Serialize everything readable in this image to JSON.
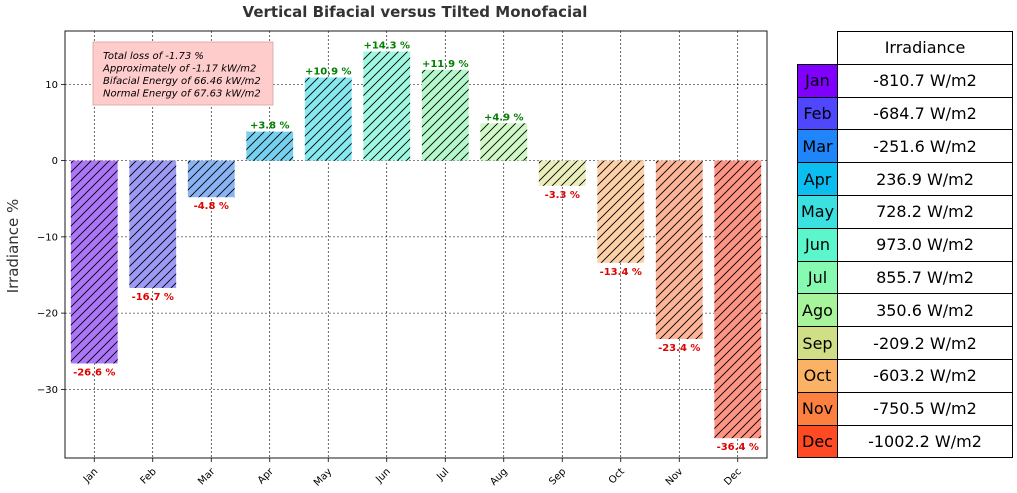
{
  "chart_data": {
    "type": "bar",
    "title": "Vertical Bifacial versus Tilted Monofacial",
    "ylabel": "Irradiance %",
    "xlabel": "",
    "categories": [
      "Jan",
      "Feb",
      "Mar",
      "Apr",
      "May",
      "Jun",
      "Jul",
      "Aug",
      "Sep",
      "Oct",
      "Nov",
      "Dec"
    ],
    "values": [
      -26.6,
      -16.7,
      -4.8,
      3.8,
      10.9,
      14.3,
      11.9,
      4.9,
      -3.3,
      -13.4,
      -23.4,
      -36.4
    ],
    "value_labels": [
      "-26.6 %",
      "-16.7 %",
      "-4.8 %",
      "+3.8 %",
      "+10.9 %",
      "+14.3 %",
      "+11.9 %",
      "+4.9 %",
      "-3.3 %",
      "-13.4 %",
      "-23.4 %",
      "-36.4 %"
    ],
    "ylim": [
      -39,
      17
    ],
    "yticks": [
      -30,
      -20,
      -10,
      0,
      10
    ],
    "ytick_labels": [
      "−30",
      "−20",
      "−10",
      "0",
      "10"
    ],
    "grid": true,
    "hatch": "diagonal",
    "colors": [
      "#ab77f8",
      "#9c9af5",
      "#8ab3f3",
      "#75d1ef",
      "#86e9ef",
      "#9ff9e2",
      "#b5f8cc",
      "#d1f8c7",
      "#ebeebc",
      "#fdd0a8",
      "#fdb498",
      "#fd9484"
    ],
    "positive_label_color": "#008000",
    "negative_label_color": "#e00000",
    "info_box": {
      "lines": [
        "Total loss of -1.73 %",
        "Approximately of -1.17 kW/m2",
        "Bifacial Energy of 66.46 kW/m2",
        "Normal Energy of 67.63 kW/m2"
      ],
      "background": "#ffcccc"
    }
  },
  "table": {
    "header": "Irradiance",
    "rows": [
      {
        "month": "Jan",
        "value": "-810.7 W/m2",
        "color": "#7f00ff"
      },
      {
        "month": "Feb",
        "value": "-684.7 W/m2",
        "color": "#4f47fe"
      },
      {
        "month": "Mar",
        "value": "-251.6 W/m2",
        "color": "#1f85f8"
      },
      {
        "month": "Apr",
        "value": "236.9 W/m2",
        "color": "#0cbdf0"
      },
      {
        "month": "May",
        "value": "728.2 W/m2",
        "color": "#3ce0e0"
      },
      {
        "month": "Jun",
        "value": "973.0 W/m2",
        "color": "#5cf6cc"
      },
      {
        "month": "Jul",
        "value": "855.7 W/m2",
        "color": "#86fab0"
      },
      {
        "month": "Ago",
        "value": "350.6 W/m2",
        "color": "#a8f49a"
      },
      {
        "month": "Sep",
        "value": "-209.2 W/m2",
        "color": "#d0df86"
      },
      {
        "month": "Oct",
        "value": "-603.2 W/m2",
        "color": "#fcb264"
      },
      {
        "month": "Nov",
        "value": "-750.5 W/m2",
        "color": "#fc8040"
      },
      {
        "month": "Dec",
        "value": "-1002.2 W/m2",
        "color": "#ff4a24"
      }
    ]
  }
}
